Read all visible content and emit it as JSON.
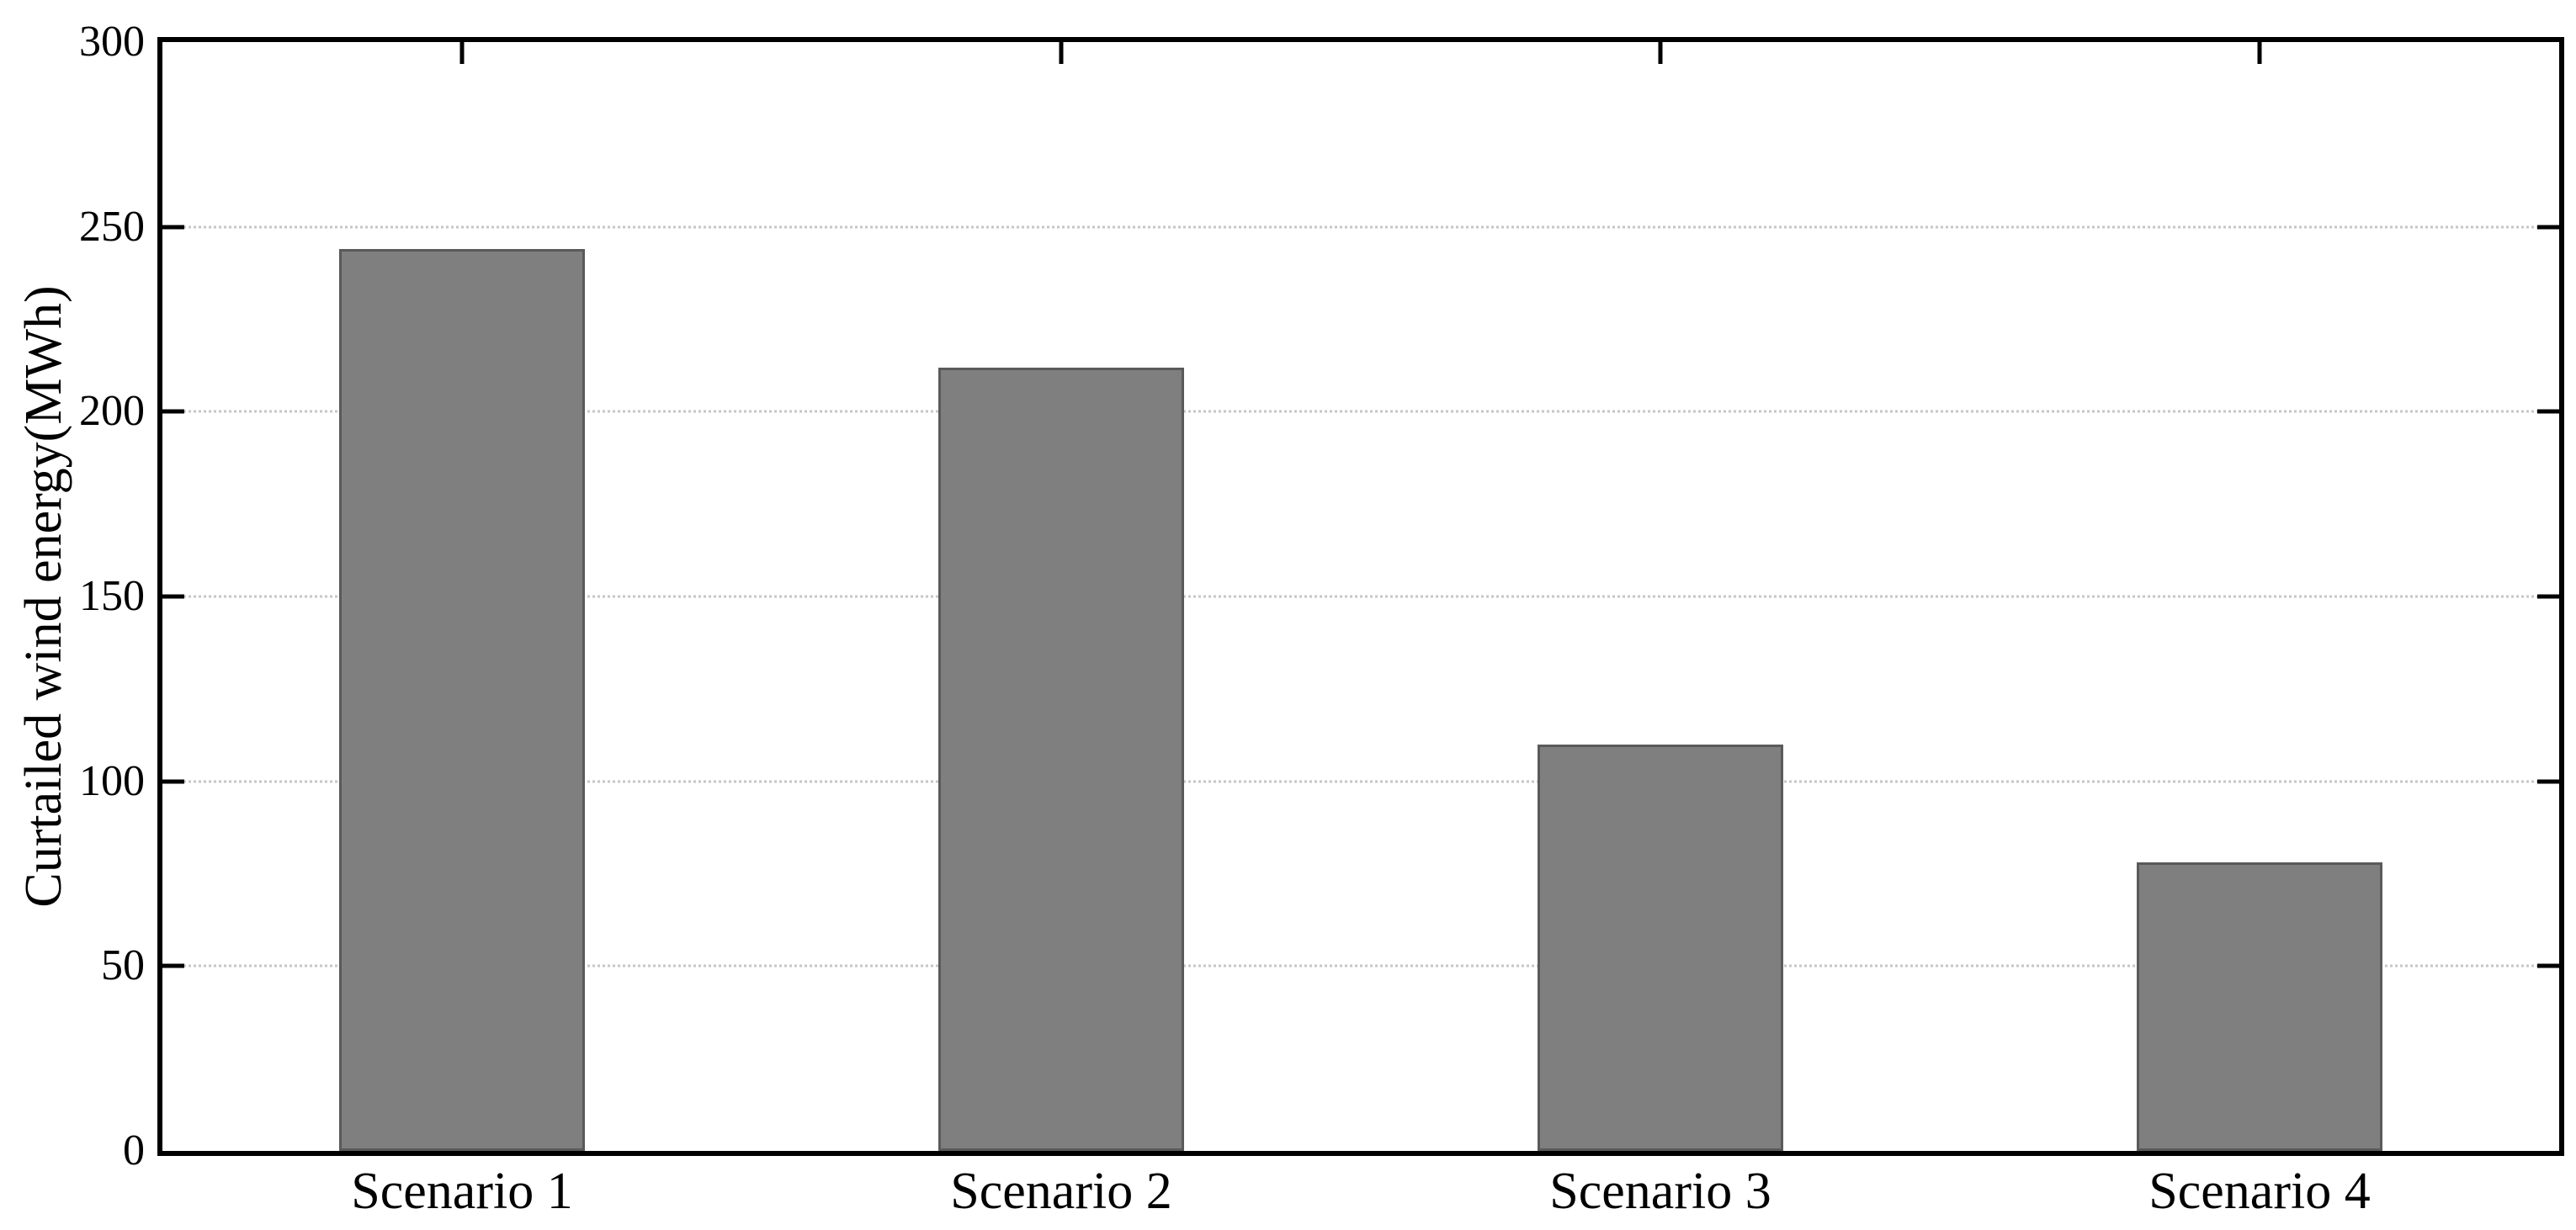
{
  "chart_data": {
    "type": "bar",
    "title": "",
    "categories": [
      "Scenario 1",
      "Scenario 2",
      "Scenario 3",
      "Scenario 4"
    ],
    "values": [
      244,
      212,
      110,
      78
    ],
    "xlabel": "",
    "ylabel": "Curtailed wind energy(MWh)",
    "ylim": [
      0,
      300
    ],
    "yticks": [
      0,
      50,
      100,
      150,
      200,
      250,
      300
    ],
    "gridline_values": [
      50,
      100,
      150,
      200,
      250
    ],
    "grid": "horizontal-dotted",
    "legend": "none",
    "colors": {
      "bar_fill": "#7f7f7f",
      "bar_edge": "#5a5a5a",
      "gridline": "#c6c6c6",
      "axis": "#000000",
      "text": "#000000",
      "background": "#ffffff"
    },
    "layout": {
      "box": true,
      "tick_direction": "in",
      "bar_width_fraction_of_slot": 0.41,
      "top_ticks_at_category_centers": true,
      "right_ticks_mirror_left": true
    }
  }
}
